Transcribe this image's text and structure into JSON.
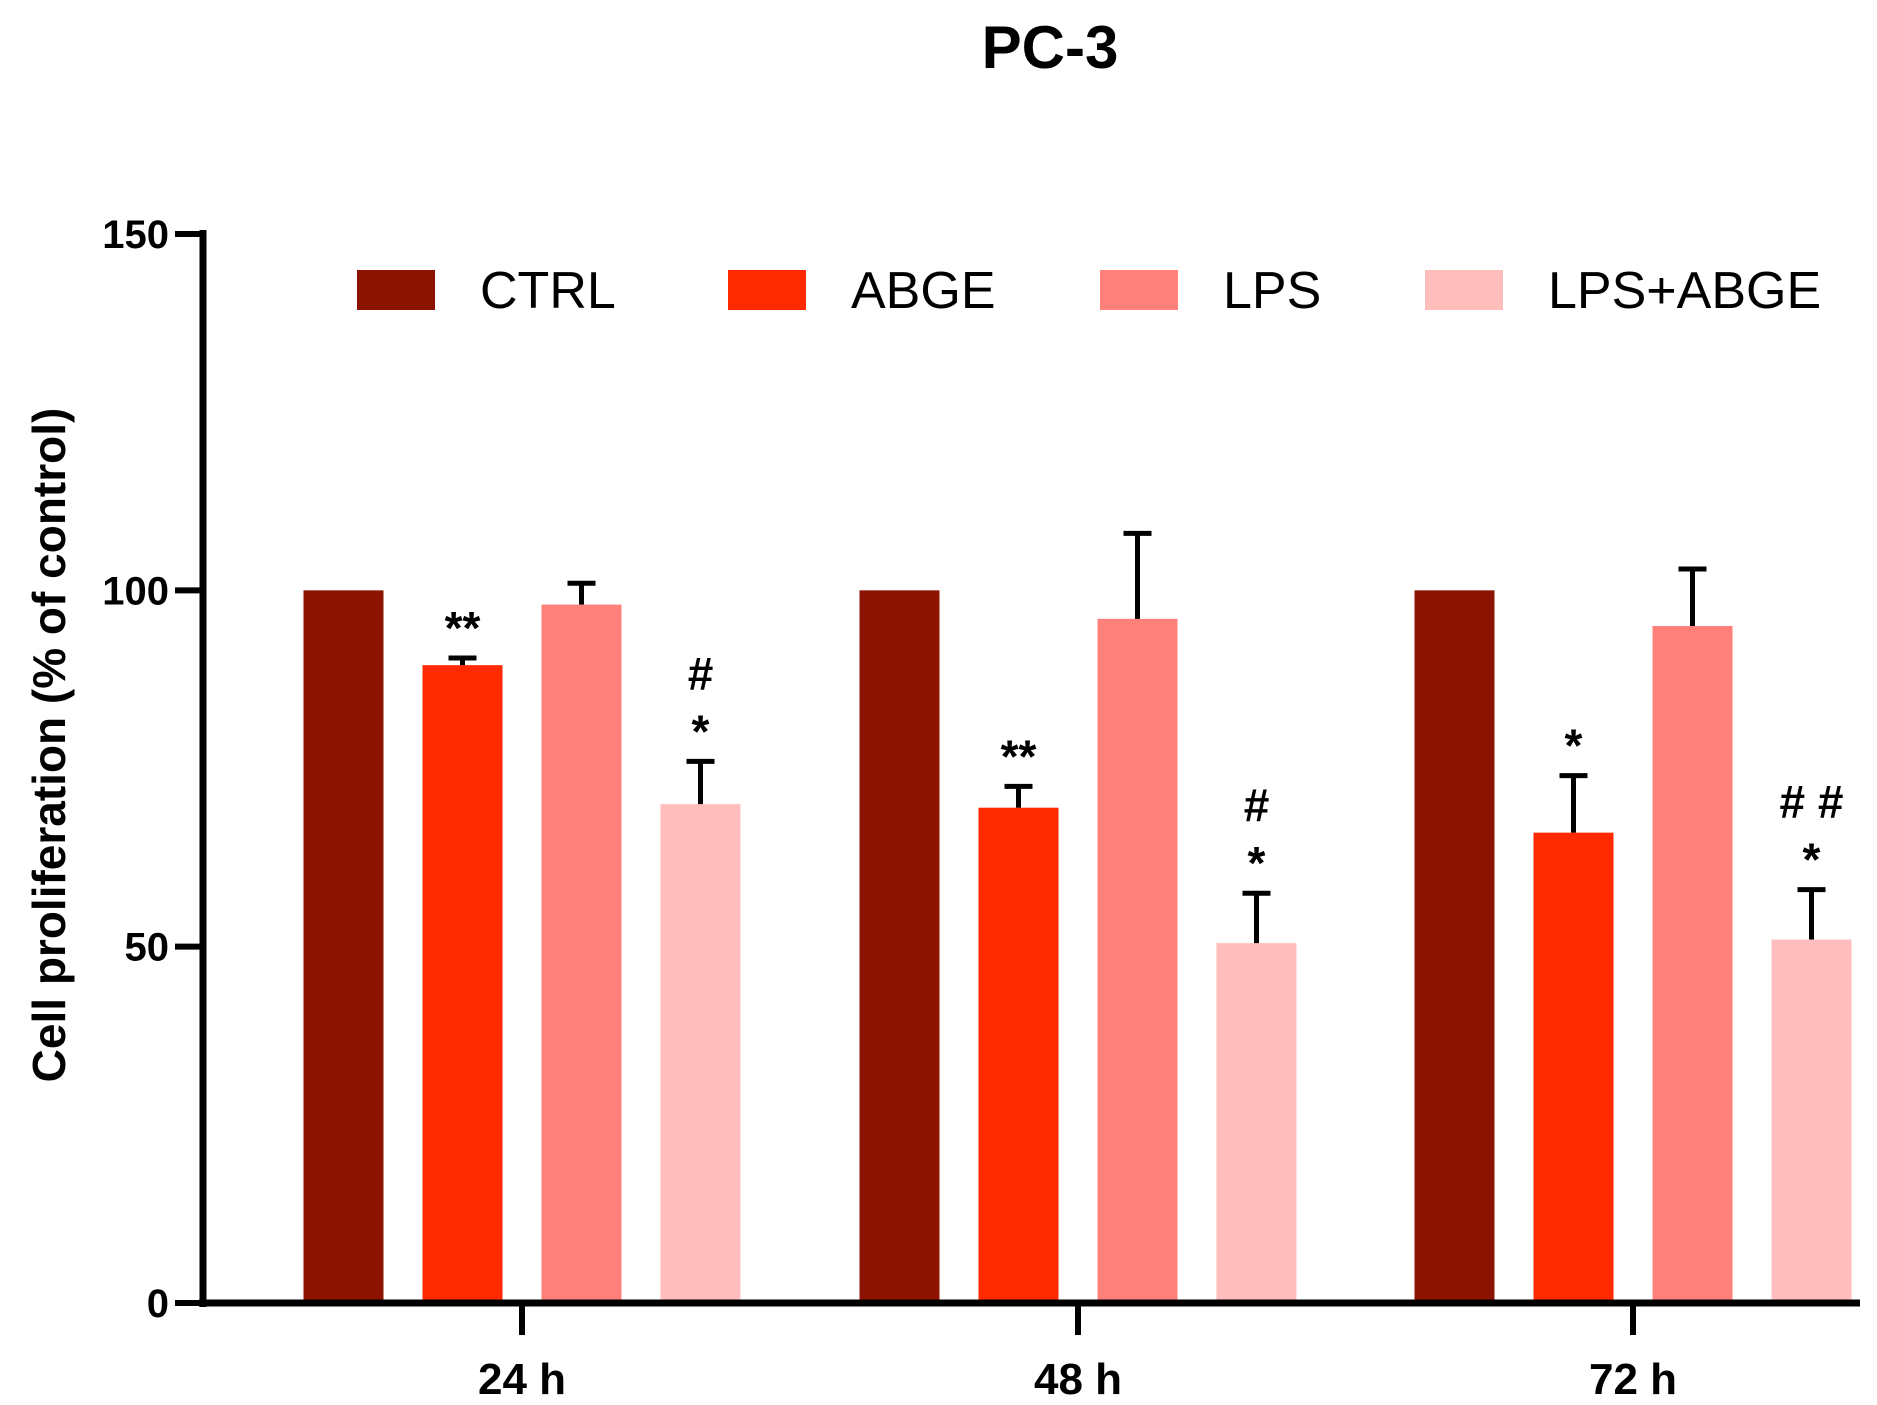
{
  "chart_data": {
    "type": "bar",
    "title": "PC-3",
    "xlabel": "",
    "ylabel": "Cell proliferation (% of control)",
    "ylim": [
      0,
      150
    ],
    "yticks": [
      "0",
      "50",
      "100",
      "150"
    ],
    "categories": [
      "24 h",
      "48 h",
      "72 h"
    ],
    "legend_position": "top-right",
    "series": [
      {
        "name": "CTRL",
        "color": "#8b1300",
        "values": [
          100,
          100,
          100
        ],
        "errors": [
          0,
          0,
          0
        ],
        "annotations": [
          "",
          "",
          ""
        ]
      },
      {
        "name": "ABGE",
        "color": "#ff2a00",
        "values": [
          89.5,
          69.5,
          66
        ],
        "errors": [
          1,
          3,
          8
        ],
        "annotations": [
          "**",
          "**",
          "*"
        ]
      },
      {
        "name": "LPS",
        "color": "#ff807a",
        "values": [
          98,
          96,
          95
        ],
        "errors": [
          3,
          12,
          8
        ],
        "annotations": [
          "",
          "",
          ""
        ]
      },
      {
        "name": "LPS+ABGE",
        "color": "#ffbdbb",
        "values": [
          70,
          50.5,
          51
        ],
        "errors": [
          6,
          7,
          7
        ],
        "annotations": [
          "#\n*",
          "#\n*",
          "# #\n*"
        ]
      }
    ]
  }
}
